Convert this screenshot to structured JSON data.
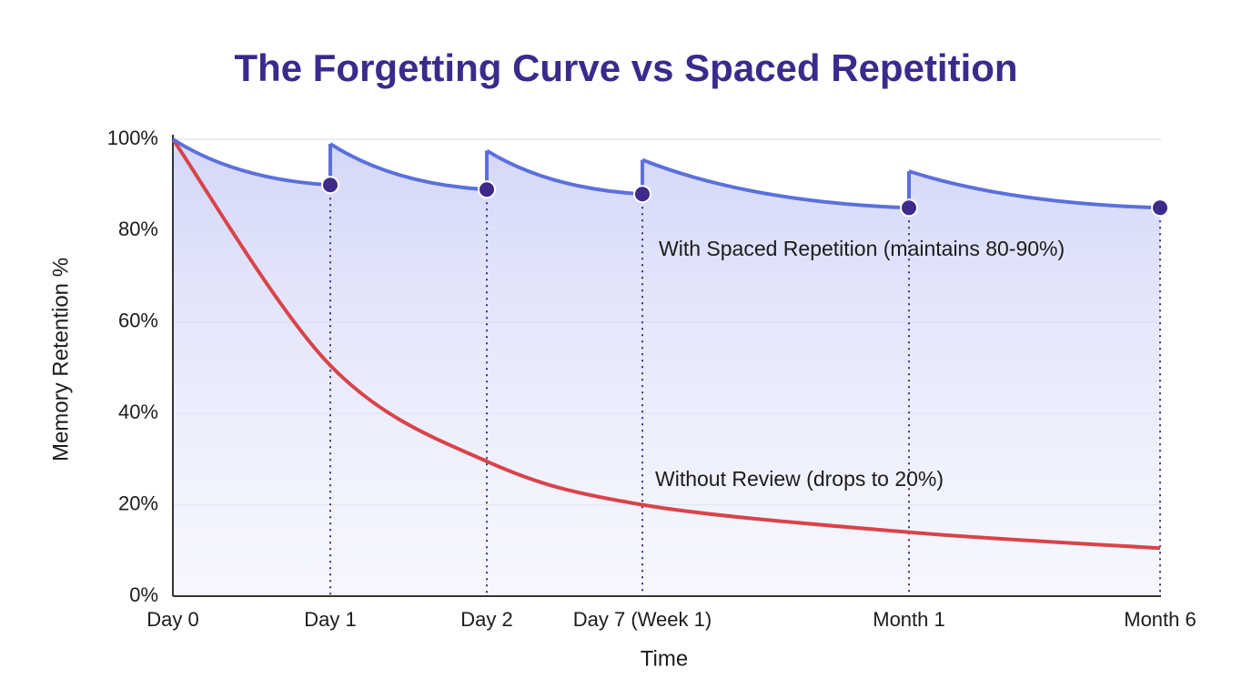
{
  "chart_data": {
    "type": "line",
    "title": "The Forgetting Curve vs Spaced Repetition",
    "x_label": "Time",
    "y_label": "Memory Retention %",
    "categories": [
      "Day 0",
      "Day 1",
      "Day 2",
      "Day 7 (Week 1)",
      "Month 1",
      "Month 6"
    ],
    "series": [
      {
        "name": "With Spaced Repetition (maintains 80-90%)",
        "color": "#5b70dc",
        "values": [
          100,
          90,
          89,
          88,
          85,
          85
        ],
        "after_review": [
          null,
          99,
          97.5,
          95.5,
          93,
          null
        ]
      },
      {
        "name": "Without Review (drops to 20%)",
        "color": "#d9434a",
        "values": [
          100,
          50.5,
          29.5,
          20,
          14,
          10.5
        ]
      }
    ],
    "ylim": [
      0,
      100
    ],
    "yticks": [
      {
        "value": 0,
        "label": "0%"
      },
      {
        "value": 20,
        "label": "20%"
      },
      {
        "value": 40,
        "label": "40%"
      },
      {
        "value": 60,
        "label": "60%"
      },
      {
        "value": 80,
        "label": "80%"
      },
      {
        "value": 100,
        "label": "100%"
      }
    ],
    "grid": true
  }
}
